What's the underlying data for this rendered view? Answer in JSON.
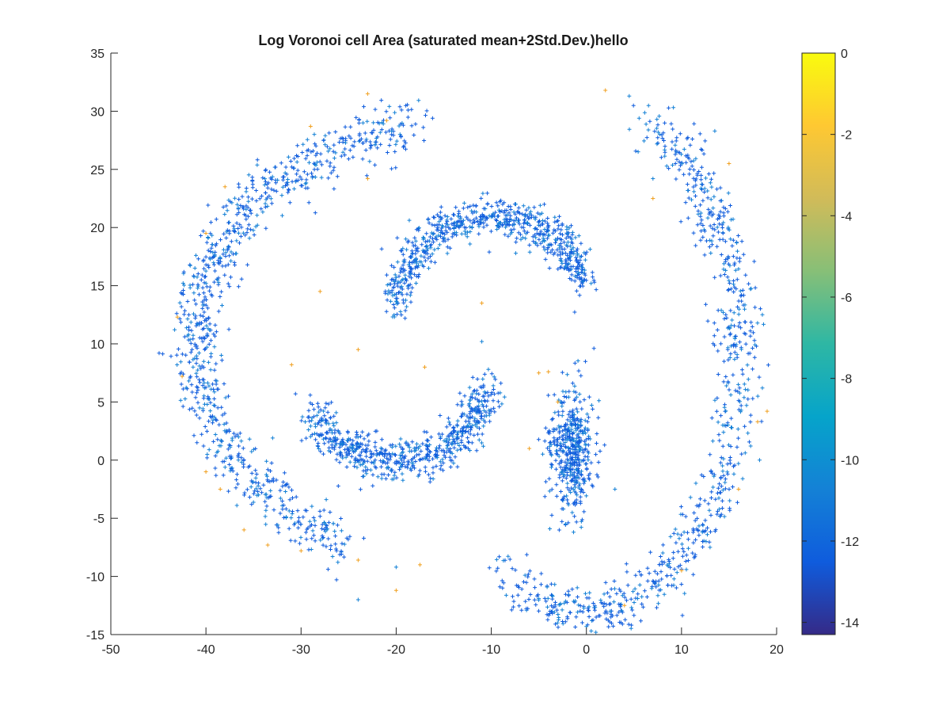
{
  "chart_data": {
    "type": "scatter",
    "title": "Log Voronoi cell Area (saturated mean+2Std.Dev.)hello",
    "xlabel": "",
    "ylabel": "",
    "xlim": [
      -50,
      20
    ],
    "ylim": [
      -15,
      35
    ],
    "xticks": [
      -50,
      -40,
      -30,
      -20,
      -10,
      0,
      10,
      20
    ],
    "yticks": [
      -15,
      -10,
      -5,
      0,
      5,
      10,
      15,
      20,
      25,
      30,
      35
    ],
    "marker": "+",
    "grid": false,
    "colorbar": {
      "position": "right",
      "colormap": "parula",
      "range": [
        -14.3,
        0
      ],
      "ticks": [
        0,
        -2,
        -4,
        -6,
        -8,
        -10,
        -12,
        -14
      ],
      "colors": [
        "#352a87",
        "#0f5cdd",
        "#1481d6",
        "#06a4ca",
        "#2eb7a4",
        "#87bf77",
        "#d1bb59",
        "#fec832",
        "#f9fb0e"
      ]
    },
    "point_colors": {
      "dense": "#0f5cdd",
      "medium": "#1481d6",
      "sparse": "#f0a020"
    },
    "clusters": [
      {
        "name": "outer-left-arc",
        "shape": "arc",
        "cx": -13,
        "cy": 10,
        "rx": 28,
        "ry": 19,
        "theta_start_deg": 100,
        "theta_end_deg": 243,
        "spread": 1.2,
        "count": 900,
        "value": -11.3
      },
      {
        "name": "outer-right-arc",
        "shape": "arc",
        "cx": 0,
        "cy": 9,
        "rx": 16,
        "ry": 22,
        "theta_start_deg": -122,
        "theta_end_deg": 66,
        "spread": 1.1,
        "count": 800,
        "value": -11.0
      },
      {
        "name": "upper-inner-arc",
        "shape": "arc",
        "cx": -10,
        "cy": 13,
        "rx": 10,
        "ry": 8,
        "theta_start_deg": 15,
        "theta_end_deg": 180,
        "spread": 0.9,
        "count": 700,
        "value": -11.4
      },
      {
        "name": "lower-inner-arc",
        "shape": "arc",
        "cx": -20,
        "cy": 6,
        "rx": 9,
        "ry": 6,
        "theta_start_deg": 195,
        "theta_end_deg": 365,
        "spread": 0.9,
        "count": 650,
        "value": -11.2
      },
      {
        "name": "center-blob",
        "shape": "blob",
        "cx": -1.5,
        "cy": 1,
        "sx": 1.2,
        "sy": 2.6,
        "count": 450,
        "value": -12.4
      }
    ],
    "sparse_points": [
      [
        -23,
        31.5
      ],
      [
        -21,
        29.2
      ],
      [
        -29,
        28.7
      ],
      [
        -38,
        23.5
      ],
      [
        -40,
        19.5
      ],
      [
        -28,
        14.5
      ],
      [
        -43,
        12.3
      ],
      [
        -31,
        8.2
      ],
      [
        -17,
        8
      ],
      [
        -4,
        7.6
      ],
      [
        -42.5,
        7.2
      ],
      [
        -39,
        2.2
      ],
      [
        -30,
        -7.8
      ],
      [
        -33.5,
        -7.3
      ],
      [
        -36,
        -6
      ],
      [
        -38.5,
        -2.5
      ],
      [
        -40,
        -1
      ],
      [
        -24,
        -12
      ],
      [
        -20,
        -11.2
      ],
      [
        -20,
        -9.2
      ],
      [
        -17.5,
        -9
      ],
      [
        -24,
        -8.6
      ],
      [
        2,
        31.8
      ],
      [
        4.5,
        31.3
      ],
      [
        7,
        24.2
      ],
      [
        13.5,
        28.3
      ],
      [
        15,
        25.5
      ],
      [
        7,
        22.5
      ],
      [
        18.5,
        12.5
      ],
      [
        18.5,
        6.2
      ],
      [
        19,
        4.2
      ],
      [
        18,
        3.3
      ],
      [
        16,
        -2.5
      ],
      [
        13,
        -7.5
      ],
      [
        10,
        -9.5
      ],
      [
        -1,
        -3
      ],
      [
        0,
        -14.3
      ],
      [
        1,
        -14.8
      ],
      [
        2.5,
        -13
      ],
      [
        4,
        -12.5
      ],
      [
        3,
        -2.5
      ],
      [
        -6,
        1
      ],
      [
        -3,
        5
      ],
      [
        -5,
        7.5
      ],
      [
        -11,
        13.5
      ],
      [
        -11,
        10.2
      ],
      [
        -24,
        9.5
      ],
      [
        -23,
        24.2
      ]
    ]
  }
}
